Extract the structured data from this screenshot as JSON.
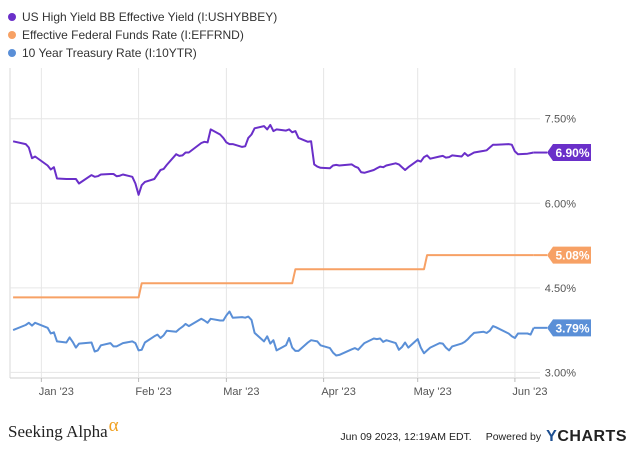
{
  "footer": {
    "logo_text": "Seeking Alpha",
    "logo_symbol": "α",
    "timestamp": "Jun 09 2023, 12:19AM EDT.",
    "powered_by": "Powered by",
    "brand_mark": "Y",
    "brand_rest": "CHARTS"
  },
  "chart_data": {
    "type": "line",
    "x_ticks": [
      "Jan '23",
      "Feb '23",
      "Mar '23",
      "Apr '23",
      "May '23",
      "Jun '23"
    ],
    "y_ticks": [
      "7.50%",
      "6.00%",
      "4.50%",
      "3.00%"
    ],
    "ylim": [
      2.9,
      8.4
    ],
    "grid": true,
    "legend_position": "top-left",
    "series": [
      {
        "name": "US High Yield BB Effective Yield (I:USHYBBEY)",
        "color": "#6a2fc9",
        "end_label": "6.90%",
        "points": [
          [
            "2022-12-23",
            7.1
          ],
          [
            "2022-12-27",
            7.05
          ],
          [
            "2022-12-28",
            6.99
          ],
          [
            "2022-12-29",
            6.8
          ],
          [
            "2022-12-30",
            6.83
          ],
          [
            "2023-01-03",
            6.67
          ],
          [
            "2023-01-04",
            6.6
          ],
          [
            "2023-01-05",
            6.64
          ],
          [
            "2023-01-06",
            6.44
          ],
          [
            "2023-01-09",
            6.43
          ],
          [
            "2023-01-10",
            6.43
          ],
          [
            "2023-01-11",
            6.43
          ],
          [
            "2023-01-12",
            6.43
          ],
          [
            "2023-01-13",
            6.35
          ],
          [
            "2023-01-17",
            6.5
          ],
          [
            "2023-01-18",
            6.47
          ],
          [
            "2023-01-19",
            6.48
          ],
          [
            "2023-01-20",
            6.51
          ],
          [
            "2023-01-23",
            6.52
          ],
          [
            "2023-01-24",
            6.52
          ],
          [
            "2023-01-25",
            6.48
          ],
          [
            "2023-01-26",
            6.49
          ],
          [
            "2023-01-27",
            6.51
          ],
          [
            "2023-01-30",
            6.47
          ],
          [
            "2023-01-31",
            6.35
          ],
          [
            "2023-02-01",
            6.15
          ],
          [
            "2023-02-02",
            6.32
          ],
          [
            "2023-02-03",
            6.38
          ],
          [
            "2023-02-06",
            6.43
          ],
          [
            "2023-02-07",
            6.51
          ],
          [
            "2023-02-08",
            6.59
          ],
          [
            "2023-02-09",
            6.61
          ],
          [
            "2023-02-10",
            6.68
          ],
          [
            "2023-02-13",
            6.87
          ],
          [
            "2023-02-14",
            6.84
          ],
          [
            "2023-02-15",
            6.85
          ],
          [
            "2023-02-16",
            6.9
          ],
          [
            "2023-02-17",
            6.9
          ],
          [
            "2023-02-21",
            7.07
          ],
          [
            "2023-02-22",
            7.09
          ],
          [
            "2023-02-23",
            7.08
          ],
          [
            "2023-02-24",
            7.31
          ],
          [
            "2023-02-27",
            7.22
          ],
          [
            "2023-02-28",
            7.16
          ],
          [
            "2023-03-01",
            7.08
          ],
          [
            "2023-03-02",
            7.05
          ],
          [
            "2023-03-03",
            7.05
          ],
          [
            "2023-03-06",
            7.0
          ],
          [
            "2023-03-07",
            7.01
          ],
          [
            "2023-03-08",
            7.16
          ],
          [
            "2023-03-09",
            7.22
          ],
          [
            "2023-03-10",
            7.33
          ],
          [
            "2023-03-13",
            7.37
          ],
          [
            "2023-03-14",
            7.31
          ],
          [
            "2023-03-15",
            7.39
          ],
          [
            "2023-03-16",
            7.28
          ],
          [
            "2023-03-17",
            7.31
          ],
          [
            "2023-03-20",
            7.29
          ],
          [
            "2023-03-21",
            7.31
          ],
          [
            "2023-03-22",
            7.26
          ],
          [
            "2023-03-23",
            7.28
          ],
          [
            "2023-03-24",
            7.16
          ],
          [
            "2023-03-27",
            7.09
          ],
          [
            "2023-03-28",
            7.1
          ],
          [
            "2023-03-29",
            6.69
          ],
          [
            "2023-03-30",
            6.65
          ],
          [
            "2023-03-31",
            6.63
          ],
          [
            "2023-04-03",
            6.62
          ],
          [
            "2023-04-04",
            6.67
          ],
          [
            "2023-04-05",
            6.68
          ],
          [
            "2023-04-06",
            6.67
          ],
          [
            "2023-04-10",
            6.69
          ],
          [
            "2023-04-11",
            6.65
          ],
          [
            "2023-04-12",
            6.63
          ],
          [
            "2023-04-13",
            6.55
          ],
          [
            "2023-04-14",
            6.54
          ],
          [
            "2023-04-17",
            6.59
          ],
          [
            "2023-04-18",
            6.62
          ],
          [
            "2023-04-19",
            6.65
          ],
          [
            "2023-04-20",
            6.64
          ],
          [
            "2023-04-21",
            6.67
          ],
          [
            "2023-04-24",
            6.71
          ],
          [
            "2023-04-25",
            6.69
          ],
          [
            "2023-04-26",
            6.64
          ],
          [
            "2023-04-27",
            6.59
          ],
          [
            "2023-04-28",
            6.64
          ],
          [
            "2023-05-01",
            6.76
          ],
          [
            "2023-05-02",
            6.74
          ],
          [
            "2023-05-03",
            6.82
          ],
          [
            "2023-05-04",
            6.85
          ],
          [
            "2023-05-05",
            6.79
          ],
          [
            "2023-05-08",
            6.83
          ],
          [
            "2023-05-09",
            6.84
          ],
          [
            "2023-05-10",
            6.81
          ],
          [
            "2023-05-11",
            6.82
          ],
          [
            "2023-05-12",
            6.85
          ],
          [
            "2023-05-15",
            6.83
          ],
          [
            "2023-05-16",
            6.89
          ],
          [
            "2023-05-17",
            6.84
          ],
          [
            "2023-05-18",
            6.87
          ],
          [
            "2023-05-19",
            6.9
          ],
          [
            "2023-05-22",
            6.93
          ],
          [
            "2023-05-23",
            6.94
          ],
          [
            "2023-05-24",
            6.99
          ],
          [
            "2023-05-25",
            7.04
          ],
          [
            "2023-05-26",
            7.04
          ],
          [
            "2023-05-30",
            7.05
          ],
          [
            "2023-05-31",
            7.04
          ],
          [
            "2023-06-01",
            6.92
          ],
          [
            "2023-06-02",
            6.87
          ],
          [
            "2023-06-05",
            6.88
          ],
          [
            "2023-06-06",
            6.89
          ],
          [
            "2023-06-07",
            6.9
          ]
        ]
      },
      {
        "name": "Effective Federal Funds Rate (I:EFFRND)",
        "color": "#f7a165",
        "end_label": "5.08%",
        "points": [
          [
            "2022-12-23",
            4.33
          ],
          [
            "2023-02-01",
            4.33
          ],
          [
            "2023-02-02",
            4.58
          ],
          [
            "2023-03-22",
            4.58
          ],
          [
            "2023-03-23",
            4.83
          ],
          [
            "2023-05-03",
            4.83
          ],
          [
            "2023-05-04",
            5.08
          ],
          [
            "2023-06-07",
            5.08
          ]
        ]
      },
      {
        "name": "10 Year Treasury Rate (I:10YTR)",
        "color": "#5a8fd7",
        "end_label": "3.79%",
        "points": [
          [
            "2022-12-23",
            3.75
          ],
          [
            "2022-12-27",
            3.84
          ],
          [
            "2022-12-28",
            3.88
          ],
          [
            "2022-12-29",
            3.83
          ],
          [
            "2022-12-30",
            3.88
          ],
          [
            "2023-01-03",
            3.79
          ],
          [
            "2023-01-04",
            3.69
          ],
          [
            "2023-01-05",
            3.71
          ],
          [
            "2023-01-06",
            3.55
          ],
          [
            "2023-01-09",
            3.53
          ],
          [
            "2023-01-10",
            3.62
          ],
          [
            "2023-01-11",
            3.54
          ],
          [
            "2023-01-12",
            3.44
          ],
          [
            "2023-01-13",
            3.51
          ],
          [
            "2023-01-17",
            3.53
          ],
          [
            "2023-01-18",
            3.37
          ],
          [
            "2023-01-19",
            3.39
          ],
          [
            "2023-01-20",
            3.48
          ],
          [
            "2023-01-23",
            3.52
          ],
          [
            "2023-01-24",
            3.46
          ],
          [
            "2023-01-25",
            3.46
          ],
          [
            "2023-01-26",
            3.49
          ],
          [
            "2023-01-27",
            3.52
          ],
          [
            "2023-01-30",
            3.55
          ],
          [
            "2023-01-31",
            3.52
          ],
          [
            "2023-02-01",
            3.39
          ],
          [
            "2023-02-02",
            3.4
          ],
          [
            "2023-02-03",
            3.53
          ],
          [
            "2023-02-06",
            3.64
          ],
          [
            "2023-02-07",
            3.67
          ],
          [
            "2023-02-08",
            3.61
          ],
          [
            "2023-02-09",
            3.66
          ],
          [
            "2023-02-10",
            3.74
          ],
          [
            "2023-02-13",
            3.72
          ],
          [
            "2023-02-14",
            3.77
          ],
          [
            "2023-02-15",
            3.81
          ],
          [
            "2023-02-16",
            3.86
          ],
          [
            "2023-02-17",
            3.82
          ],
          [
            "2023-02-21",
            3.95
          ],
          [
            "2023-02-22",
            3.92
          ],
          [
            "2023-02-23",
            3.88
          ],
          [
            "2023-02-24",
            3.95
          ],
          [
            "2023-02-27",
            3.92
          ],
          [
            "2023-02-28",
            3.92
          ],
          [
            "2023-03-01",
            4.01
          ],
          [
            "2023-03-02",
            4.08
          ],
          [
            "2023-03-03",
            3.97
          ],
          [
            "2023-03-06",
            3.98
          ],
          [
            "2023-03-07",
            3.97
          ],
          [
            "2023-03-08",
            3.99
          ],
          [
            "2023-03-09",
            3.93
          ],
          [
            "2023-03-10",
            3.7
          ],
          [
            "2023-03-13",
            3.55
          ],
          [
            "2023-03-14",
            3.64
          ],
          [
            "2023-03-15",
            3.51
          ],
          [
            "2023-03-16",
            3.57
          ],
          [
            "2023-03-17",
            3.39
          ],
          [
            "2023-03-20",
            3.48
          ],
          [
            "2023-03-21",
            3.61
          ],
          [
            "2023-03-22",
            3.44
          ],
          [
            "2023-03-23",
            3.38
          ],
          [
            "2023-03-24",
            3.38
          ],
          [
            "2023-03-27",
            3.53
          ],
          [
            "2023-03-28",
            3.57
          ],
          [
            "2023-03-29",
            3.56
          ],
          [
            "2023-03-30",
            3.55
          ],
          [
            "2023-03-31",
            3.48
          ],
          [
            "2023-04-03",
            3.43
          ],
          [
            "2023-04-04",
            3.35
          ],
          [
            "2023-04-05",
            3.3
          ],
          [
            "2023-04-06",
            3.31
          ],
          [
            "2023-04-10",
            3.41
          ],
          [
            "2023-04-11",
            3.43
          ],
          [
            "2023-04-12",
            3.4
          ],
          [
            "2023-04-13",
            3.46
          ],
          [
            "2023-04-14",
            3.52
          ],
          [
            "2023-04-17",
            3.6
          ],
          [
            "2023-04-18",
            3.59
          ],
          [
            "2023-04-19",
            3.6
          ],
          [
            "2023-04-20",
            3.54
          ],
          [
            "2023-04-21",
            3.57
          ],
          [
            "2023-04-24",
            3.52
          ],
          [
            "2023-04-25",
            3.4
          ],
          [
            "2023-04-26",
            3.45
          ],
          [
            "2023-04-27",
            3.53
          ],
          [
            "2023-04-28",
            3.44
          ],
          [
            "2023-05-01",
            3.59
          ],
          [
            "2023-05-02",
            3.44
          ],
          [
            "2023-05-03",
            3.34
          ],
          [
            "2023-05-04",
            3.39
          ],
          [
            "2023-05-05",
            3.44
          ],
          [
            "2023-05-08",
            3.52
          ],
          [
            "2023-05-09",
            3.51
          ],
          [
            "2023-05-10",
            3.44
          ],
          [
            "2023-05-11",
            3.39
          ],
          [
            "2023-05-12",
            3.46
          ],
          [
            "2023-05-15",
            3.51
          ],
          [
            "2023-05-16",
            3.54
          ],
          [
            "2023-05-17",
            3.59
          ],
          [
            "2023-05-18",
            3.65
          ],
          [
            "2023-05-19",
            3.7
          ],
          [
            "2023-05-22",
            3.72
          ],
          [
            "2023-05-23",
            3.7
          ],
          [
            "2023-05-24",
            3.74
          ],
          [
            "2023-05-25",
            3.82
          ],
          [
            "2023-05-26",
            3.8
          ],
          [
            "2023-05-30",
            3.69
          ],
          [
            "2023-05-31",
            3.64
          ],
          [
            "2023-06-01",
            3.61
          ],
          [
            "2023-06-02",
            3.69
          ],
          [
            "2023-06-05",
            3.69
          ],
          [
            "2023-06-06",
            3.67
          ],
          [
            "2023-06-07",
            3.79
          ]
        ]
      }
    ]
  }
}
